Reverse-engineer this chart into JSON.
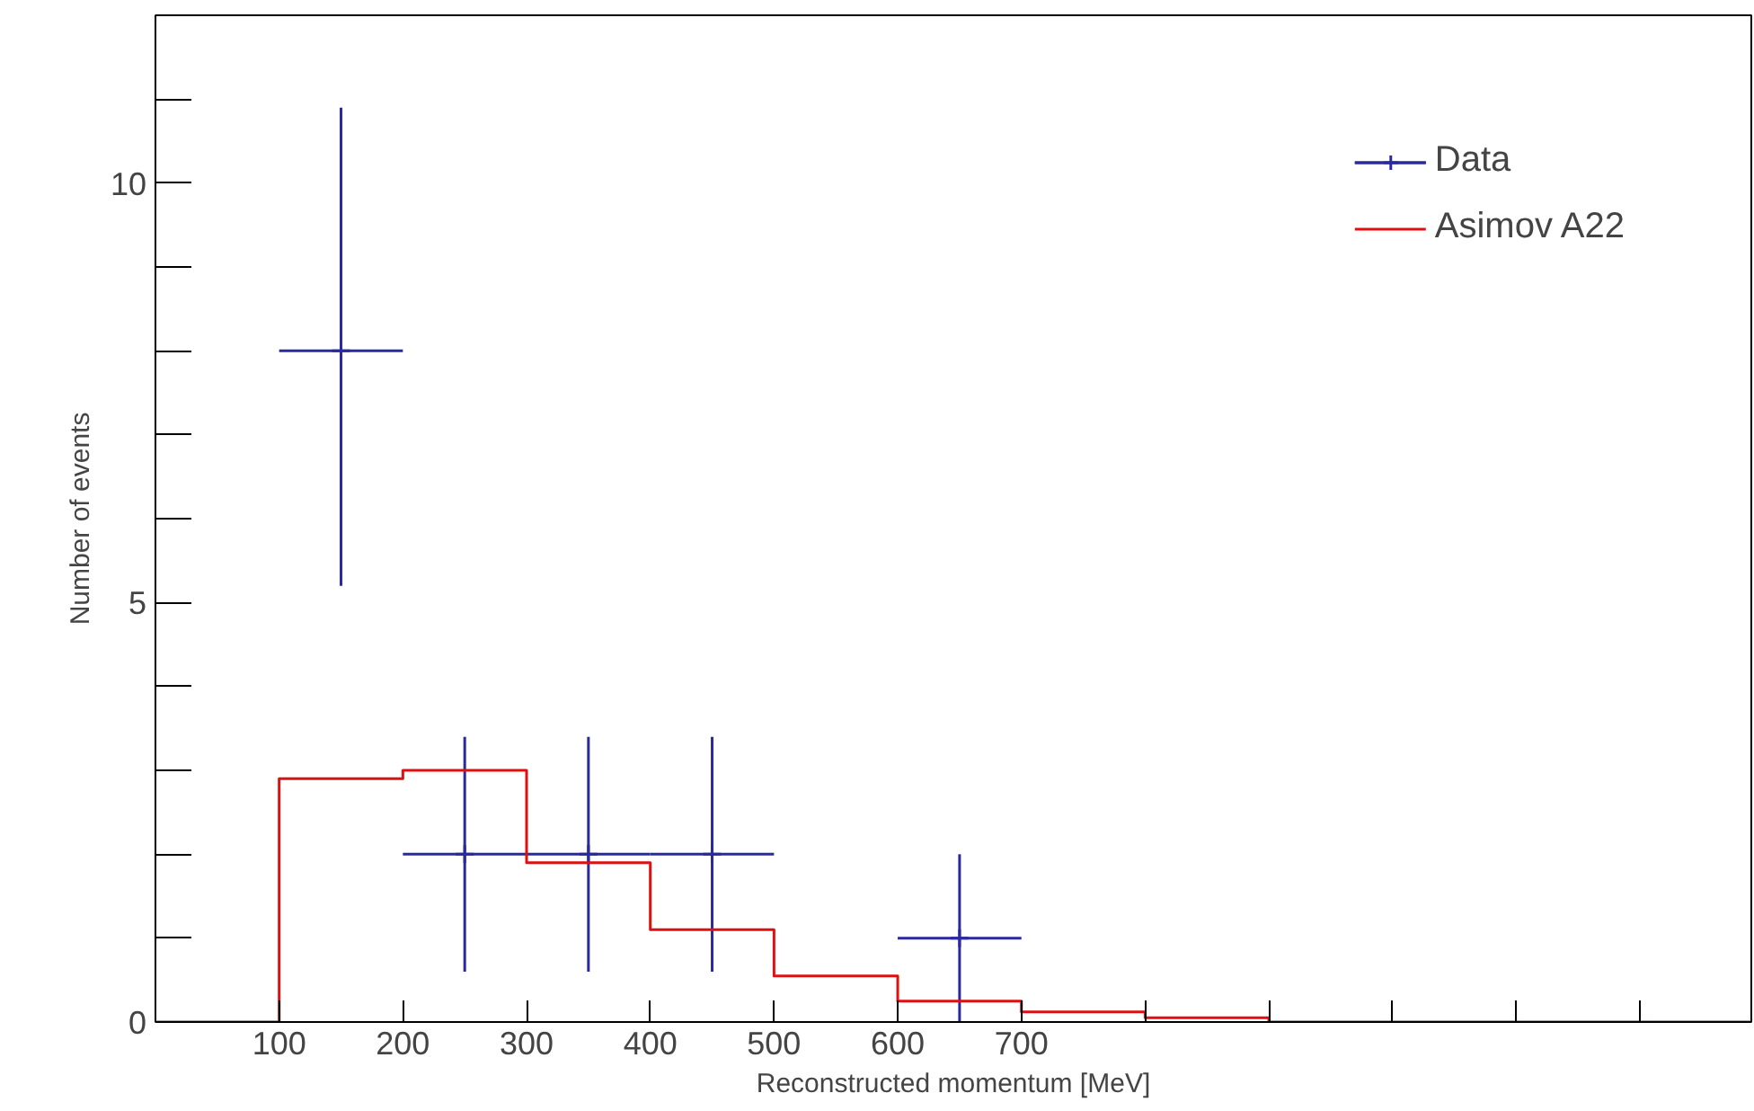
{
  "chart_data": {
    "type": "scatter",
    "xlabel": "Reconstructed momentum [MeV]",
    "ylabel": "Number of events",
    "xlim": [
      0,
      1290
    ],
    "ylim": [
      0,
      12
    ],
    "xticks": [
      {
        "value": 0,
        "label": null
      },
      100,
      200,
      300,
      400,
      500,
      600,
      700,
      {
        "value": 800,
        "label": null
      },
      {
        "value": 900,
        "label": null
      },
      {
        "value": 1000,
        "label": null
      },
      {
        "value": 1100,
        "label": null
      },
      {
        "value": 1200,
        "label": null
      }
    ],
    "yticks": [
      0,
      5,
      10
    ],
    "grid": false,
    "legend": "top right",
    "series": [
      {
        "name": "Data",
        "marker": "cross",
        "color": "#2a2aa0",
        "x": [
          150,
          250,
          350,
          450,
          650
        ],
        "values": [
          8,
          2,
          2,
          2,
          1
        ],
        "errors": [
          [
            5.2,
            10.9
          ],
          [
            0.6,
            3.4
          ],
          [
            0.6,
            3.4
          ],
          [
            0.6,
            3.4
          ],
          [
            0,
            2
          ]
        ],
        "xerrors": [
          50,
          50,
          50,
          50,
          50
        ]
      },
      {
        "name": "Asimov A22",
        "type": "step",
        "marker": "none",
        "color": "#dd1111",
        "x": [
          0,
          100,
          200,
          300,
          400,
          500,
          600,
          700,
          800,
          900,
          1290
        ],
        "values": [
          0,
          2.9,
          3.0,
          1.9,
          1.1,
          0.55,
          0.25,
          0.12,
          0.05,
          0,
          0
        ]
      }
    ]
  }
}
